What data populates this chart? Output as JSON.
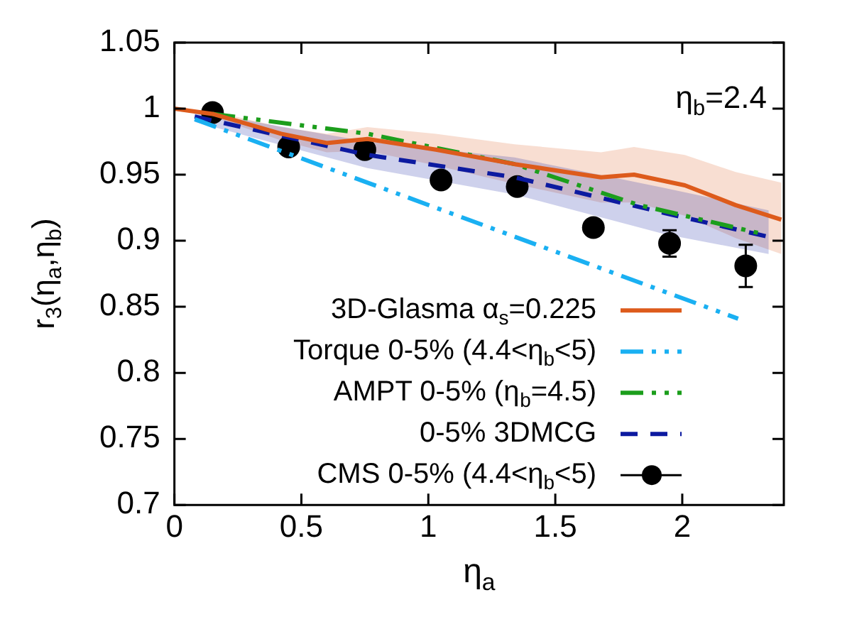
{
  "chart_data": {
    "type": "line",
    "xlabel": "η$_{a}$",
    "ylabel": "r$_{3}$(η$_{a}$,η$_{b}$)",
    "annotations": [
      "η$_{b}$=2.4"
    ],
    "legend": "bottom right",
    "grid": false,
    "xlim": [
      0,
      2.4
    ],
    "xticks": [
      0,
      0.5,
      1,
      1.5,
      2
    ],
    "ylim": [
      0.7,
      1.05
    ],
    "yticks": [
      0.7,
      0.75,
      0.8,
      0.85,
      0.9,
      0.95,
      1,
      1.05
    ],
    "series": [
      {
        "name": "3D-Glasma α$_{s}$=0.225",
        "color": "#dd5b1c",
        "line_style": "solid",
        "x": [
          0,
          0.15,
          0.42,
          0.6,
          0.76,
          1.03,
          1.34,
          1.68,
          1.81,
          2.01,
          2.21,
          2.39
        ],
        "values": [
          1.0,
          0.996,
          0.981,
          0.974,
          0.977,
          0.969,
          0.958,
          0.948,
          0.95,
          0.942,
          0.927,
          0.916
        ],
        "upper": [
          1.0,
          0.998,
          0.986,
          0.981,
          0.986,
          0.981,
          0.973,
          0.967,
          0.971,
          0.965,
          0.952,
          0.944
        ],
        "lower": [
          1.0,
          0.994,
          0.976,
          0.967,
          0.968,
          0.957,
          0.943,
          0.929,
          0.929,
          0.919,
          0.902,
          0.89
        ]
      },
      {
        "name": "Torque 0-5% (4.4<η$_{b}$<5)",
        "color": "#1ab0f2",
        "line_style": "dotted",
        "x": [
          0.08,
          2.22
        ],
        "values": [
          0.992,
          0.841
        ]
      },
      {
        "name": "AMPT 0-5% (η$_{b}$=4.5)",
        "color": "#1c9e1c",
        "line_style": "dotted",
        "x": [
          0.15,
          0.76,
          1.34,
          1.83,
          2.32
        ],
        "values": [
          0.996,
          0.981,
          0.958,
          0.927,
          0.905
        ]
      },
      {
        "name": "0-5% 3DMCG",
        "color": "#0c1aa0",
        "line_style": "dashed",
        "x": [
          0.08,
          0.76,
          1.34,
          1.93,
          2.34
        ],
        "values": [
          0.994,
          0.965,
          0.948,
          0.921,
          0.903
        ],
        "upper": [
          0.998,
          0.975,
          0.963,
          0.94,
          0.923
        ],
        "lower": [
          0.99,
          0.955,
          0.935,
          0.905,
          0.89
        ]
      },
      {
        "name": "CMS 0-5% (4.4<η$_{b}$<5)",
        "color": "#000000",
        "type": "scatter",
        "marker": "circle",
        "x": [
          0.15,
          0.45,
          0.75,
          1.05,
          1.35,
          1.65,
          1.95,
          2.25
        ],
        "values": [
          0.997,
          0.971,
          0.969,
          0.946,
          0.941,
          0.91,
          0.898,
          0.881
        ],
        "errors": [
          null,
          null,
          null,
          null,
          null,
          null,
          0.01,
          0.016
        ]
      }
    ]
  }
}
